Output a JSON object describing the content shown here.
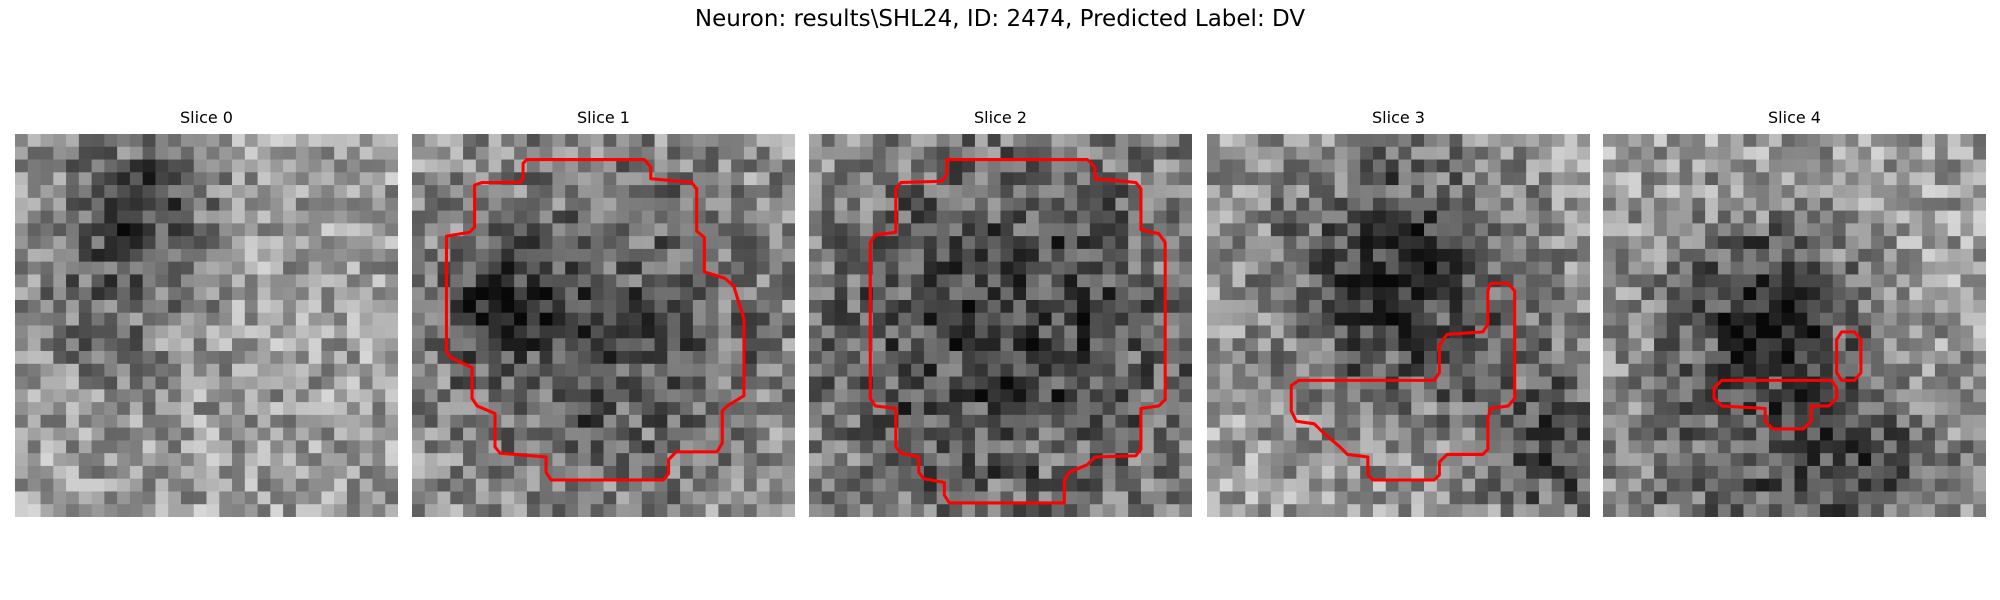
{
  "title": "Neuron: results\\SHL24, ID: 2474, Predicted Label: DV",
  "panels": [
    {
      "title": "Slice 0"
    },
    {
      "title": "Slice 1"
    },
    {
      "title": "Slice 2"
    },
    {
      "title": "Slice 3"
    },
    {
      "title": "Slice 4"
    }
  ]
}
